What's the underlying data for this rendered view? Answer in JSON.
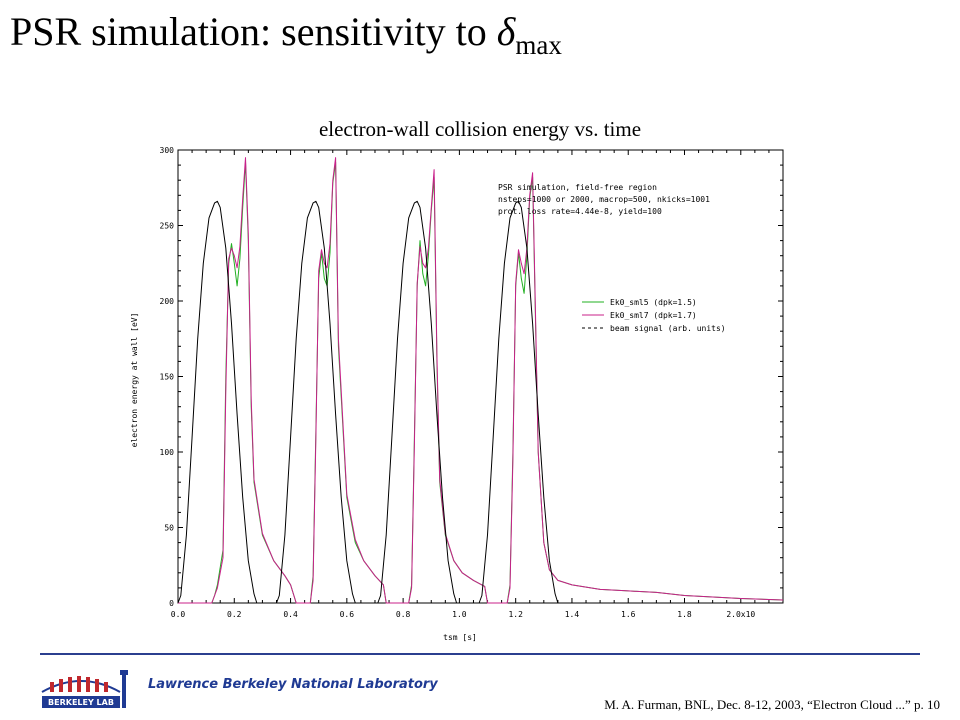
{
  "slide": {
    "title_main": "PSR simulation: sensitivity to ",
    "title_symbol": "δ",
    "title_subscript": "max",
    "chart_caption": "electron-wall collision energy vs. time",
    "footer_lab": "Lawrence Berkeley National Laboratory",
    "footer_citation": "M. A. Furman, BNL, Dec. 8-12, 2003, “Electron Cloud ...”  p. 10",
    "logo_text": "BERKELEY LAB"
  },
  "chart_data": {
    "type": "line",
    "xlabel": "tsm [s]",
    "ylabel": "electron energy at wall [eV]",
    "xlim": [
      0,
      2.15
    ],
    "ylim": [
      0,
      300
    ],
    "x_ticks": [
      0.0,
      0.2,
      0.4,
      0.6,
      0.8,
      1.0,
      1.2,
      1.4,
      1.6,
      1.8,
      2.0
    ],
    "x_tick_labels": [
      "0.0",
      "0.2",
      "0.4",
      "0.6",
      "0.8",
      "1.0",
      "1.2",
      "1.4",
      "1.6",
      "1.8",
      "2.0x10"
    ],
    "y_ticks": [
      0,
      50,
      100,
      150,
      200,
      250,
      300
    ],
    "y_tick_labels": [
      "0",
      "50",
      "100",
      "150",
      "200",
      "250",
      "300"
    ],
    "annotation": [
      "PSR simulation, field-free region",
      "nsteps=1000 or 2000, macrop=500, nkicks=1001",
      "prot. loss rate=4.44e-8, yield=100"
    ],
    "legend_position": "right",
    "grid": false,
    "series": [
      {
        "name": "Ek0_sml5 (dpk=1.5)",
        "color": "#22b022",
        "style": "solid",
        "x": [
          0.0,
          0.12,
          0.13,
          0.14,
          0.16,
          0.17,
          0.18,
          0.19,
          0.2,
          0.21,
          0.22,
          0.23,
          0.24,
          0.25,
          0.26,
          0.27,
          0.3,
          0.34,
          0.38,
          0.4,
          0.42,
          0.47,
          0.48,
          0.49,
          0.5,
          0.51,
          0.52,
          0.53,
          0.54,
          0.55,
          0.56,
          0.57,
          0.6,
          0.63,
          0.66,
          0.7,
          0.73,
          0.74,
          0.82,
          0.83,
          0.84,
          0.85,
          0.86,
          0.87,
          0.88,
          0.89,
          0.9,
          0.91,
          0.92,
          0.93,
          0.95,
          0.98,
          1.01,
          1.05,
          1.09,
          1.1,
          1.17,
          1.18,
          1.19,
          1.2,
          1.21,
          1.22,
          1.23,
          1.24,
          1.25,
          1.26,
          1.27,
          1.28,
          1.3,
          1.32,
          1.35,
          1.4,
          1.5,
          1.6,
          1.7,
          1.8,
          1.9,
          2.0,
          2.15
        ],
        "y": [
          0,
          0,
          5,
          12,
          35,
          150,
          225,
          238,
          225,
          210,
          228,
          262,
          292,
          240,
          130,
          80,
          45,
          28,
          18,
          12,
          0,
          0,
          18,
          115,
          215,
          232,
          215,
          210,
          232,
          278,
          292,
          170,
          70,
          40,
          28,
          18,
          12,
          0,
          0,
          12,
          110,
          210,
          240,
          218,
          210,
          230,
          260,
          282,
          160,
          80,
          45,
          28,
          20,
          15,
          11,
          0,
          0,
          12,
          100,
          210,
          232,
          215,
          205,
          230,
          268,
          282,
          190,
          100,
          40,
          22,
          15,
          12,
          9,
          8,
          7,
          5,
          4,
          3,
          2
        ]
      },
      {
        "name": "Ek0_sml7 (dpk=1.7)",
        "color": "#c8208a",
        "style": "solid",
        "x": [
          0.0,
          0.12,
          0.13,
          0.14,
          0.16,
          0.17,
          0.18,
          0.19,
          0.2,
          0.21,
          0.22,
          0.23,
          0.24,
          0.25,
          0.26,
          0.27,
          0.3,
          0.34,
          0.38,
          0.4,
          0.42,
          0.47,
          0.48,
          0.49,
          0.5,
          0.51,
          0.52,
          0.53,
          0.54,
          0.55,
          0.56,
          0.57,
          0.6,
          0.63,
          0.66,
          0.7,
          0.73,
          0.74,
          0.82,
          0.83,
          0.84,
          0.85,
          0.86,
          0.87,
          0.88,
          0.89,
          0.9,
          0.91,
          0.92,
          0.93,
          0.95,
          0.98,
          1.01,
          1.05,
          1.09,
          1.1,
          1.17,
          1.18,
          1.19,
          1.2,
          1.21,
          1.22,
          1.23,
          1.24,
          1.25,
          1.26,
          1.27,
          1.28,
          1.3,
          1.32,
          1.35,
          1.4,
          1.5,
          1.6,
          1.7,
          1.8,
          1.9,
          2.0,
          2.15
        ],
        "y": [
          0,
          0,
          5,
          10,
          30,
          140,
          228,
          235,
          230,
          222,
          236,
          268,
          295,
          245,
          135,
          82,
          46,
          28,
          18,
          12,
          0,
          0,
          15,
          110,
          220,
          234,
          225,
          222,
          238,
          280,
          295,
          175,
          72,
          42,
          28,
          18,
          12,
          0,
          0,
          10,
          105,
          212,
          236,
          225,
          222,
          235,
          262,
          287,
          165,
          82,
          46,
          28,
          20,
          15,
          11,
          0,
          0,
          10,
          95,
          212,
          234,
          225,
          218,
          235,
          270,
          285,
          195,
          100,
          40,
          22,
          15,
          12,
          9,
          8,
          7,
          5,
          4,
          3,
          2
        ]
      },
      {
        "name": "beam signal (arb. units)",
        "color": "#000000",
        "style": "dashed",
        "x": [
          0.0,
          0.01,
          0.03,
          0.05,
          0.07,
          0.09,
          0.11,
          0.13,
          0.14,
          0.15,
          0.17,
          0.19,
          0.21,
          0.23,
          0.25,
          0.27,
          0.28,
          0.35,
          0.36,
          0.38,
          0.4,
          0.42,
          0.44,
          0.46,
          0.48,
          0.49,
          0.5,
          0.52,
          0.54,
          0.56,
          0.58,
          0.6,
          0.62,
          0.63,
          0.71,
          0.72,
          0.74,
          0.76,
          0.78,
          0.8,
          0.82,
          0.84,
          0.85,
          0.86,
          0.88,
          0.9,
          0.92,
          0.94,
          0.96,
          0.98,
          0.99,
          1.07,
          1.08,
          1.1,
          1.12,
          1.14,
          1.16,
          1.18,
          1.2,
          1.21,
          1.22,
          1.24,
          1.26,
          1.28,
          1.3,
          1.32,
          1.34,
          1.35
        ],
        "y": [
          0,
          5,
          45,
          110,
          175,
          225,
          255,
          265,
          266,
          262,
          235,
          185,
          125,
          70,
          28,
          6,
          0,
          0,
          5,
          45,
          110,
          175,
          225,
          255,
          265,
          266,
          262,
          235,
          185,
          125,
          70,
          28,
          6,
          0,
          0,
          5,
          45,
          110,
          175,
          225,
          255,
          265,
          266,
          262,
          235,
          185,
          125,
          70,
          28,
          6,
          0,
          0,
          5,
          45,
          110,
          175,
          225,
          255,
          265,
          266,
          262,
          235,
          185,
          125,
          70,
          28,
          6,
          0
        ]
      }
    ]
  }
}
